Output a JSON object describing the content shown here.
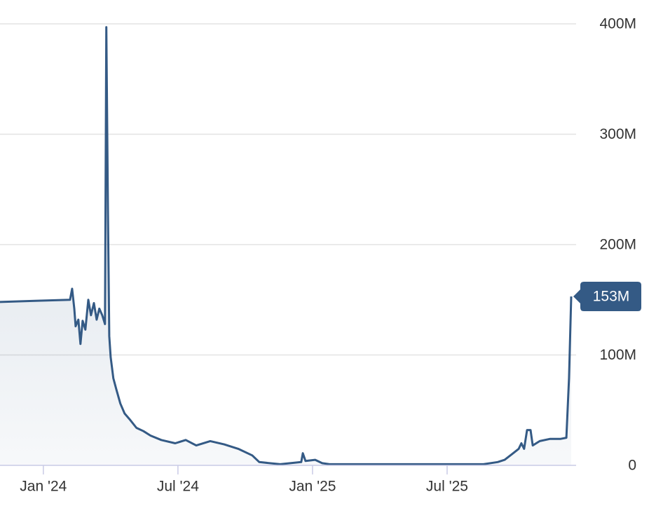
{
  "chart_data": {
    "type": "area",
    "x": [
      2023.839,
      2023.969,
      2024.099,
      2024.107,
      2024.115,
      2024.12,
      2024.13,
      2024.138,
      2024.146,
      2024.156,
      2024.167,
      2024.177,
      2024.188,
      2024.198,
      2024.208,
      2024.219,
      2024.229,
      2024.234,
      2024.24,
      2024.245,
      2024.25,
      2024.26,
      2024.271,
      2024.286,
      2024.302,
      2024.323,
      2024.346,
      2024.372,
      2024.398,
      2024.438,
      2024.49,
      2024.529,
      2024.568,
      2024.62,
      2024.672,
      2024.724,
      2024.776,
      2024.802,
      2024.88,
      2024.958,
      2024.964,
      2024.974,
      2025.01,
      2025.036,
      2025.063,
      2025.271,
      2025.505,
      2025.635,
      2025.688,
      2025.714,
      2025.74,
      2025.766,
      2025.776,
      2025.786,
      2025.797,
      2025.81,
      2025.818,
      2025.844,
      2025.883,
      2025.922,
      2025.943,
      2025.953,
      2025.961
    ],
    "values": [
      148,
      149,
      150,
      160,
      142,
      126,
      132,
      110,
      131,
      123,
      150,
      136,
      147,
      132,
      142,
      136,
      128,
      397,
      231,
      117,
      98,
      79,
      69,
      56,
      47,
      41,
      34,
      31,
      27,
      23,
      20,
      23,
      18,
      22,
      19,
      15,
      9,
      3,
      1,
      3,
      11,
      4,
      5,
      2,
      1,
      1,
      1,
      1,
      3,
      5,
      10,
      15,
      20,
      15,
      32,
      32,
      18,
      22,
      24,
      24,
      25,
      79,
      153
    ],
    "value_labels": [
      null,
      null,
      null,
      null,
      null,
      null,
      null,
      null,
      null,
      null,
      null,
      null,
      null,
      null,
      null,
      null,
      null,
      null,
      null,
      null,
      null,
      null,
      null,
      null,
      null,
      null,
      null,
      null,
      null,
      null,
      null,
      null,
      null,
      null,
      null,
      null,
      null,
      null,
      null,
      null,
      null,
      null,
      null,
      null,
      null,
      null,
      null,
      null,
      null,
      null,
      null,
      null,
      null,
      null,
      null,
      null,
      null,
      null,
      null,
      null,
      null,
      null,
      "153M"
    ],
    "color": "#345a85",
    "xlim": [
      2023.839,
      2025.961
    ],
    "ylim": [
      0,
      400
    ],
    "xticks": [
      {
        "value": 2024,
        "label": "Jan '24"
      },
      {
        "value": 2024.5,
        "label": "Jul '24"
      },
      {
        "value": 2025,
        "label": "Jan '25"
      },
      {
        "value": 2025.5,
        "label": "Jul '25"
      }
    ],
    "yticks": [
      0,
      {
        "value": 100,
        "label": "100M"
      },
      {
        "value": 200,
        "label": "200M"
      },
      {
        "value": 300,
        "label": "300M"
      },
      {
        "value": 400,
        "label": "400M"
      }
    ],
    "grid": true
  }
}
